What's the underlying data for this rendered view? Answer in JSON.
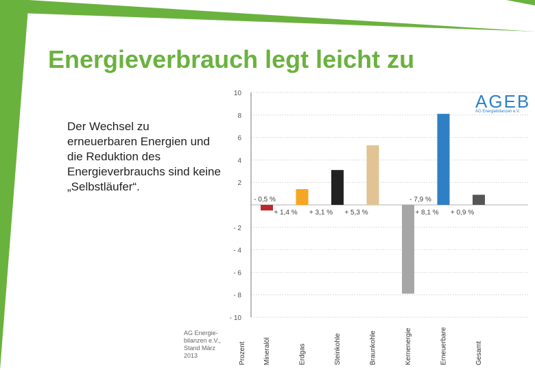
{
  "slide": {
    "title": "Energieverbrauch legt leicht zu",
    "body": "Der Wechsel zu erneuerbaren Energien und die Reduktion des Energieverbrauchs sind keine „Selbstläufer“.",
    "source_line1": "AG Energie-",
    "source_line2": "bilanzen e.V.,",
    "source_line3": "Stand März",
    "source_line4": "2013",
    "accent_color": "#6ab23e"
  },
  "logo": {
    "text": "AGEB",
    "subtitle": "AG Energiebilanzen e.V."
  },
  "chart_data": {
    "type": "bar",
    "xlabel": "Prozent",
    "categories": [
      "Mineralöl",
      "Erdgas",
      "Steinkohle",
      "Braunkohle",
      "Kernenergie",
      "Erneuerbare",
      "Gesamt"
    ],
    "values": [
      -0.5,
      1.4,
      3.1,
      5.3,
      -7.9,
      8.1,
      0.9
    ],
    "value_labels": [
      "- 0,5 %",
      "+ 1,4 %",
      "+ 3,1 %",
      "+ 5,3 %",
      "- 7,9 %",
      "+ 8,1 %",
      "+ 0,9 %"
    ],
    "colors": [
      "#c0272d",
      "#f5a623",
      "#222222",
      "#e2c393",
      "#a6a6a6",
      "#2f7fc4",
      "#555555"
    ],
    "ylim": [
      -10,
      10
    ],
    "yticks": [
      10,
      8,
      6,
      4,
      2,
      -2,
      -4,
      -6,
      -8,
      -10
    ],
    "grid": true
  }
}
